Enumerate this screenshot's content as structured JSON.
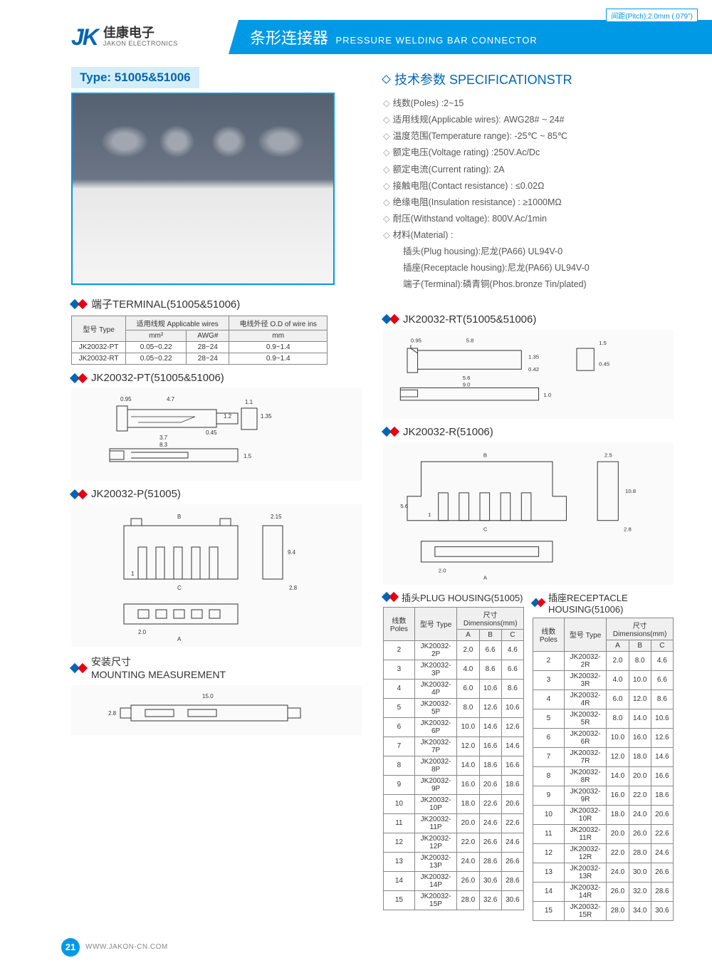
{
  "header": {
    "logo_cn": "佳康电子",
    "logo_en": "JAKON ELECTRONICS",
    "logo_mark": "JK",
    "title_cn": "条形连接器",
    "title_en": "PRESSURE WELDING BAR CONNECTOR",
    "pitch": "间距(Pitch):2.0mm (.079\")"
  },
  "type_label": "Type: 51005&51006",
  "spec_title": "技术参数 SPECIFICATIONSTR",
  "specs": [
    "线数(Poles) :2~15",
    "适用线规(Applicable wires): AWG28# ~ 24#",
    "温度范围(Temperature range): -25℃ ~ 85℃",
    "额定电压(Voltage rating) :250V.Ac/Dc",
    "额定电流(Current rating): 2A",
    "接触电阻(Contact resistance) : ≤0.02Ω",
    "绝缘电阻(Insulation resistance) : ≥1000MΩ",
    "耐压(Withstand voltage): 800V.Ac/1min",
    "材料(Material) :"
  ],
  "materials": [
    "插头(Plug housing):尼龙(PA66) UL94V-0",
    "插座(Receptacle housing):尼龙(PA66) UL94V-0",
    "端子(Terminal):磷青铜(Phos.bronze Tin/plated)"
  ],
  "terminal_title": "端子TERMINAL(51005&51006)",
  "terminal_table": {
    "headers": [
      "型号\nType",
      "适用线规\nApplicable wires",
      "电线外径\nO.D of wire ins"
    ],
    "subheaders": [
      "",
      "mm²",
      "AWG#",
      "mm"
    ],
    "rows": [
      [
        "JK20032-PT",
        "0.05~0.22",
        "28~24",
        "0.9~1.4"
      ],
      [
        "JK20032-RT",
        "0.05~0.22",
        "28~24",
        "0.9~1.4"
      ]
    ]
  },
  "sec_pt": "JK20032-PT(51005&51006)",
  "sec_p": "JK20032-P(51005)",
  "sec_rt": "JK20032-RT(51005&51006)",
  "sec_r": "JK20032-R(51006)",
  "sec_mount_cn": "安装尺寸",
  "sec_mount_en": "MOUNTING MEASUREMENT",
  "plug_title": "插头PLUG HOUSING(51005)",
  "recept_title": "插座RECEPTACLE HOUSING(51006)",
  "dim_headers": [
    "线数\nPoles",
    "型号\nType",
    "A",
    "B",
    "C"
  ],
  "dim_group": "尺寸Dimensions(mm)",
  "plug_rows": [
    [
      "2",
      "JK20032-2P",
      "2.0",
      "6.6",
      "4.6"
    ],
    [
      "3",
      "JK20032-3P",
      "4.0",
      "8.6",
      "6.6"
    ],
    [
      "4",
      "JK20032-4P",
      "6.0",
      "10.6",
      "8.6"
    ],
    [
      "5",
      "JK20032-5P",
      "8.0",
      "12.6",
      "10.6"
    ],
    [
      "6",
      "JK20032-6P",
      "10.0",
      "14.6",
      "12.6"
    ],
    [
      "7",
      "JK20032-7P",
      "12.0",
      "16.6",
      "14.6"
    ],
    [
      "8",
      "JK20032-8P",
      "14.0",
      "18.6",
      "16.6"
    ],
    [
      "9",
      "JK20032-9P",
      "16.0",
      "20.6",
      "18.6"
    ],
    [
      "10",
      "JK20032-10P",
      "18.0",
      "22.6",
      "20.6"
    ],
    [
      "11",
      "JK20032-11P",
      "20.0",
      "24.6",
      "22.6"
    ],
    [
      "12",
      "JK20032-12P",
      "22.0",
      "26.6",
      "24.6"
    ],
    [
      "13",
      "JK20032-13P",
      "24.0",
      "28.6",
      "26.6"
    ],
    [
      "14",
      "JK20032-14P",
      "26.0",
      "30.6",
      "28.6"
    ],
    [
      "15",
      "JK20032-15P",
      "28.0",
      "32.6",
      "30.6"
    ]
  ],
  "recept_rows": [
    [
      "2",
      "JK20032-2R",
      "2.0",
      "8.0",
      "4.6"
    ],
    [
      "3",
      "JK20032-3R",
      "4.0",
      "10.0",
      "6.6"
    ],
    [
      "4",
      "JK20032-4R",
      "6.0",
      "12.0",
      "8.6"
    ],
    [
      "5",
      "JK20032-5R",
      "8.0",
      "14.0",
      "10.6"
    ],
    [
      "6",
      "JK20032-6R",
      "10.0",
      "16.0",
      "12.6"
    ],
    [
      "7",
      "JK20032-7R",
      "12.0",
      "18.0",
      "14.6"
    ],
    [
      "8",
      "JK20032-8R",
      "14.0",
      "20.0",
      "16.6"
    ],
    [
      "9",
      "JK20032-9R",
      "16.0",
      "22.0",
      "18.6"
    ],
    [
      "10",
      "JK20032-10R",
      "18.0",
      "24.0",
      "20.6"
    ],
    [
      "11",
      "JK20032-11R",
      "20.0",
      "26.0",
      "22.6"
    ],
    [
      "12",
      "JK20032-12R",
      "22.0",
      "28.0",
      "24.6"
    ],
    [
      "13",
      "JK20032-13R",
      "24.0",
      "30.0",
      "26.6"
    ],
    [
      "14",
      "JK20032-14R",
      "26.0",
      "32.0",
      "28.6"
    ],
    [
      "15",
      "JK20032-15R",
      "28.0",
      "34.0",
      "30.6"
    ]
  ],
  "pt_dims": {
    "w1": "0.95",
    "w2": "4.7",
    "w3": "3.7",
    "w4": "8.3",
    "h1": "1.2",
    "h2": "0.45",
    "h3": "1.1",
    "h4": "1.35",
    "h5": "1.5"
  },
  "rt_dims": {
    "w1": "0.95",
    "w2": "5.8",
    "w3": "5.6",
    "w4": "9.0",
    "h1": "1.35",
    "h2": "0.42",
    "h3": "1.5",
    "h4": "0.45",
    "h5": "1.0"
  },
  "p_dims": {
    "B": "B",
    "C": "C",
    "A": "A",
    "w1": "2.15",
    "w2": "2.8",
    "w3": "2.0",
    "h1": "9.4",
    "pin1": "1"
  },
  "r_dims": {
    "B": "B",
    "C": "C",
    "A": "A",
    "w1": "2.5",
    "w2": "2.8",
    "w3": "2.0",
    "h1": "10.8",
    "h2": "5.6",
    "pin1": "1"
  },
  "mount_dims": {
    "w": "15.0",
    "h": "2.8"
  },
  "footer": {
    "page": "21",
    "url": "WWW.JAKON-CN.COM"
  }
}
